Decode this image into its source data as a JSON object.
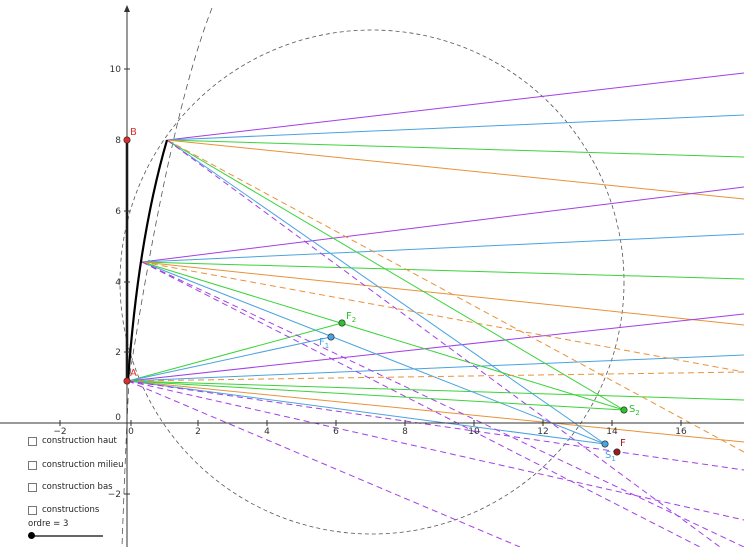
{
  "axes": {
    "x_ticks": [
      "−2",
      "0",
      "2",
      "4",
      "6",
      "8",
      "10",
      "12",
      "14",
      "16"
    ],
    "y_ticks": [
      "−2",
      "2",
      "4",
      "6",
      "8",
      "10"
    ],
    "origin_label": "0"
  },
  "points": {
    "A": {
      "label": "A",
      "color": "#d8302c"
    },
    "B": {
      "label": "B",
      "color": "#d8302c"
    },
    "F": {
      "label": "F",
      "color": "#9b1c1c"
    },
    "F1": {
      "label": "F",
      "sub": "1",
      "color": "#4aa3df"
    },
    "F2": {
      "label": "F",
      "sub": "2",
      "color": "#2fbf2f"
    },
    "S1": {
      "label": "S",
      "sub": "1",
      "color": "#4aa3df"
    },
    "S2": {
      "label": "S",
      "sub": "2",
      "color": "#2fbf2f"
    }
  },
  "colors": {
    "purple": "#a23fe6",
    "blue": "#4aa3df",
    "green": "#3ad43a",
    "orange": "#e8923a",
    "curve": "#000000",
    "circle": "#555555"
  },
  "controls": {
    "checkboxes": [
      {
        "label": "construction haut",
        "checked": false
      },
      {
        "label": "construction milieu",
        "checked": false
      },
      {
        "label": "construction bas",
        "checked": false
      },
      {
        "label": "constructions",
        "checked": false
      }
    ],
    "slider": {
      "label": "ordre = 3",
      "value": 3
    }
  }
}
